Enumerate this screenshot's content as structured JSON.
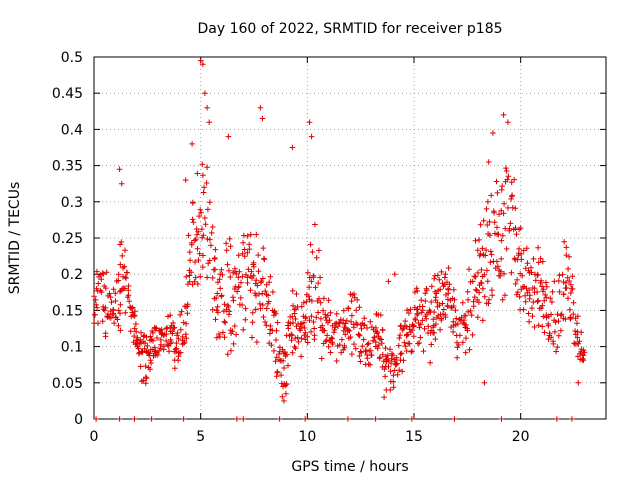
{
  "chart_data": {
    "type": "scatter",
    "title": "Day 160 of 2022, SRMTID for receiver p185",
    "xlabel": "GPS time / hours",
    "ylabel": "SRMTID / TECUs",
    "xlim": [
      0,
      24
    ],
    "ylim": [
      0,
      0.5
    ],
    "x_ticks": [
      0,
      5,
      10,
      15,
      20
    ],
    "x_tick_labels": [
      "0",
      "5",
      "10",
      "15",
      "20"
    ],
    "y_ticks": [
      0,
      0.05,
      0.1,
      0.15,
      0.2,
      0.25,
      0.3,
      0.35,
      0.4,
      0.45,
      0.5
    ],
    "y_tick_labels": [
      "0",
      "0.05",
      "0.1",
      "0.15",
      "0.2",
      "0.25",
      "0.3",
      "0.35",
      "0.4",
      "0.45",
      "0.5"
    ],
    "grid": true,
    "marker": "+",
    "marker_color": "#e00000",
    "series": [
      {
        "name": "SRMTID",
        "profile_hours": [
          0.0,
          0.2,
          0.5,
          0.8,
          1.2,
          1.5,
          1.8,
          2.0,
          2.3,
          2.6,
          3.0,
          3.4,
          3.8,
          4.2,
          4.5,
          4.8,
          5.0,
          5.2,
          5.5,
          5.8,
          6.1,
          6.5,
          6.8,
          7.2,
          7.6,
          8.0,
          8.4,
          8.7,
          8.9,
          9.2,
          9.5,
          9.8,
          10.1,
          10.4,
          10.7,
          11.0,
          11.4,
          11.8,
          12.2,
          12.6,
          13.0,
          13.4,
          13.8,
          14.1,
          14.5,
          14.9,
          15.3,
          15.7,
          16.1,
          16.5,
          16.9,
          17.3,
          17.7,
          18.1,
          18.5,
          18.9,
          19.2,
          19.5,
          19.8,
          20.1,
          20.5,
          20.9,
          21.3,
          21.7,
          22.1,
          22.4,
          22.7,
          23.0
        ],
        "profile_center": [
          0.13,
          0.17,
          0.16,
          0.14,
          0.18,
          0.19,
          0.12,
          0.11,
          0.08,
          0.09,
          0.1,
          0.12,
          0.1,
          0.12,
          0.22,
          0.26,
          0.25,
          0.3,
          0.23,
          0.15,
          0.17,
          0.16,
          0.19,
          0.2,
          0.18,
          0.19,
          0.13,
          0.08,
          0.06,
          0.13,
          0.14,
          0.12,
          0.18,
          0.2,
          0.14,
          0.13,
          0.12,
          0.12,
          0.14,
          0.11,
          0.1,
          0.11,
          0.08,
          0.07,
          0.11,
          0.12,
          0.14,
          0.13,
          0.16,
          0.18,
          0.14,
          0.11,
          0.16,
          0.2,
          0.24,
          0.26,
          0.25,
          0.28,
          0.25,
          0.2,
          0.16,
          0.18,
          0.16,
          0.14,
          0.19,
          0.17,
          0.11,
          0.1
        ],
        "profile_spread": [
          0.04,
          0.05,
          0.04,
          0.04,
          0.06,
          0.05,
          0.04,
          0.03,
          0.03,
          0.03,
          0.03,
          0.04,
          0.03,
          0.04,
          0.06,
          0.08,
          0.09,
          0.09,
          0.08,
          0.06,
          0.07,
          0.07,
          0.08,
          0.09,
          0.07,
          0.06,
          0.04,
          0.04,
          0.03,
          0.05,
          0.05,
          0.05,
          0.07,
          0.08,
          0.05,
          0.04,
          0.04,
          0.04,
          0.05,
          0.04,
          0.04,
          0.04,
          0.04,
          0.03,
          0.04,
          0.04,
          0.05,
          0.05,
          0.05,
          0.06,
          0.05,
          0.05,
          0.06,
          0.07,
          0.08,
          0.09,
          0.09,
          0.09,
          0.08,
          0.07,
          0.05,
          0.06,
          0.05,
          0.05,
          0.05,
          0.05,
          0.04,
          0.04
        ],
        "peak_points": [
          [
            1.2,
            0.345
          ],
          [
            1.3,
            0.325
          ],
          [
            4.3,
            0.33
          ],
          [
            4.6,
            0.38
          ],
          [
            5.0,
            0.495
          ],
          [
            5.1,
            0.49
          ],
          [
            5.2,
            0.45
          ],
          [
            5.3,
            0.43
          ],
          [
            5.4,
            0.41
          ],
          [
            6.3,
            0.39
          ],
          [
            7.8,
            0.43
          ],
          [
            7.9,
            0.415
          ],
          [
            9.3,
            0.375
          ],
          [
            10.1,
            0.41
          ],
          [
            10.2,
            0.39
          ],
          [
            18.5,
            0.355
          ],
          [
            18.7,
            0.395
          ],
          [
            19.2,
            0.42
          ],
          [
            19.4,
            0.41
          ],
          [
            13.8,
            0.19
          ],
          [
            14.1,
            0.2
          ],
          [
            16.6,
            0.18
          ]
        ],
        "low_points": [
          [
            8.9,
            0.025
          ],
          [
            9.0,
            0.035
          ],
          [
            13.6,
            0.03
          ],
          [
            13.7,
            0.04
          ],
          [
            18.3,
            0.05
          ],
          [
            22.7,
            0.05
          ]
        ],
        "zero_hours": [
          0.1,
          1.2,
          1.9,
          2.7,
          4.2,
          6.7,
          7.0,
          8.7,
          9.9,
          11.9,
          13.2,
          14.9,
          16.9,
          19.1,
          21.7,
          22.4
        ]
      }
    ]
  }
}
